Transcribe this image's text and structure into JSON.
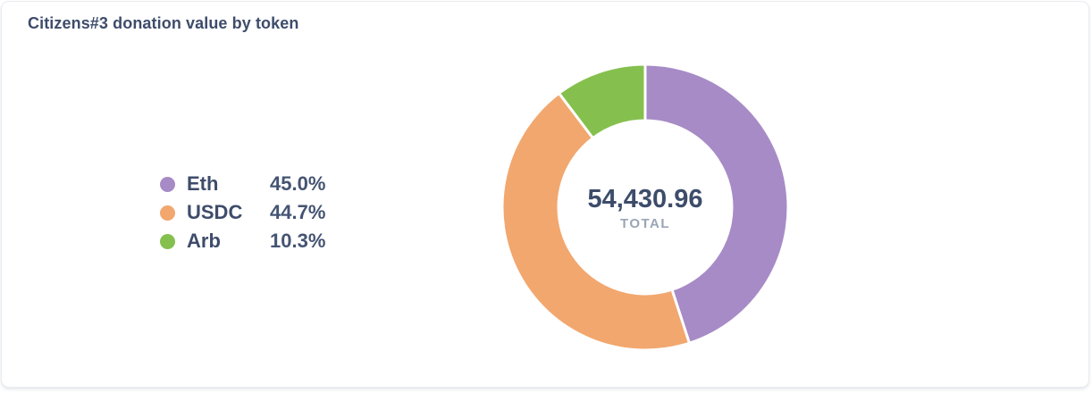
{
  "card": {
    "title": "Citizens#3 donation value by token"
  },
  "chart_data": {
    "type": "pie",
    "variant": "donut",
    "title": "Citizens#3 donation value by token",
    "categories": [
      "Eth",
      "USDC",
      "Arb"
    ],
    "values": [
      45.0,
      44.7,
      10.3
    ],
    "value_labels": [
      "45.0%",
      "44.7%",
      "10.3%"
    ],
    "colors": [
      "#a78bc6",
      "#f2a76e",
      "#85c04e"
    ],
    "center_value": "54,430.96",
    "center_label": "TOTAL",
    "legend_position": "left",
    "start_angle_deg": 0,
    "direction": "clockwise",
    "inner_radius_ratio": 0.6,
    "slice_border_color": "#ffffff"
  },
  "colors": {
    "title_text": "#3e4c6b",
    "percent_text": "#455473",
    "total_label_text": "#9aa5b6",
    "card_border": "#e9ebf0",
    "card_background": "#ffffff"
  }
}
